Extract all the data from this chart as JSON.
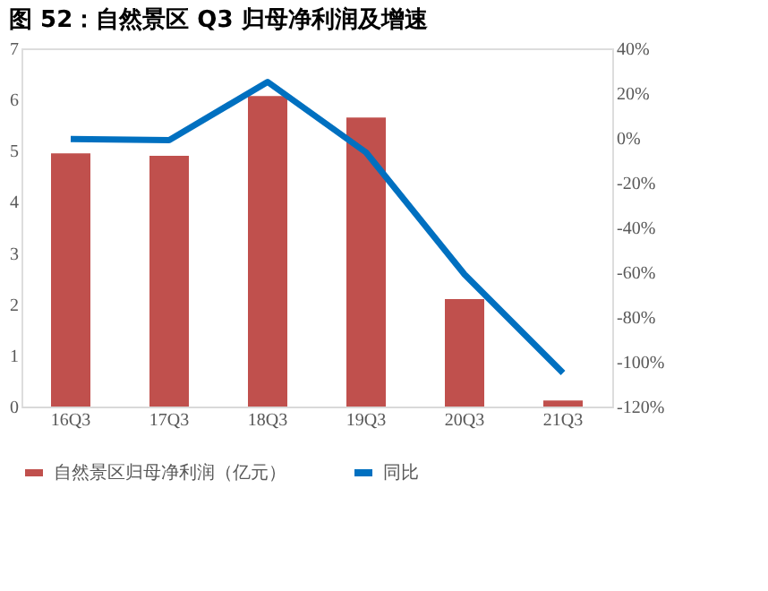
{
  "chart_data": {
    "type": "bar",
    "title": "图 52：自然景区 Q3 归母净利润及增速",
    "categories": [
      "16Q3",
      "17Q3",
      "18Q3",
      "19Q3",
      "20Q3",
      "21Q3"
    ],
    "series": [
      {
        "name": "自然景区归母净利润（亿元）",
        "color": "#c0504d",
        "values": [
          4.95,
          4.9,
          6.07,
          5.65,
          2.1,
          0.12
        ]
      },
      {
        "name": "同比",
        "color": "#0070c0",
        "type": "line",
        "axis": "y2",
        "values": [
          -0.5,
          -1,
          25,
          -6.5,
          -61,
          -105
        ]
      }
    ],
    "ylim": [
      0,
      7
    ],
    "yticks": [
      0,
      1,
      2,
      3,
      4,
      5,
      6,
      7
    ],
    "y2lim": [
      -120,
      40
    ],
    "y2ticks": [
      {
        "value": 40,
        "label": "40%"
      },
      {
        "value": 20,
        "label": "20%"
      },
      {
        "value": 0,
        "label": "0%"
      },
      {
        "value": -20,
        "label": "-20%"
      },
      {
        "value": -40,
        "label": "-40%"
      },
      {
        "value": -60,
        "label": "-60%"
      },
      {
        "value": -80,
        "label": "-80%"
      },
      {
        "value": -100,
        "label": "-100%"
      },
      {
        "value": -120,
        "label": "-120%"
      }
    ],
    "grid": false,
    "legend": "bottom",
    "marker": "none",
    "line_style": "solid"
  }
}
